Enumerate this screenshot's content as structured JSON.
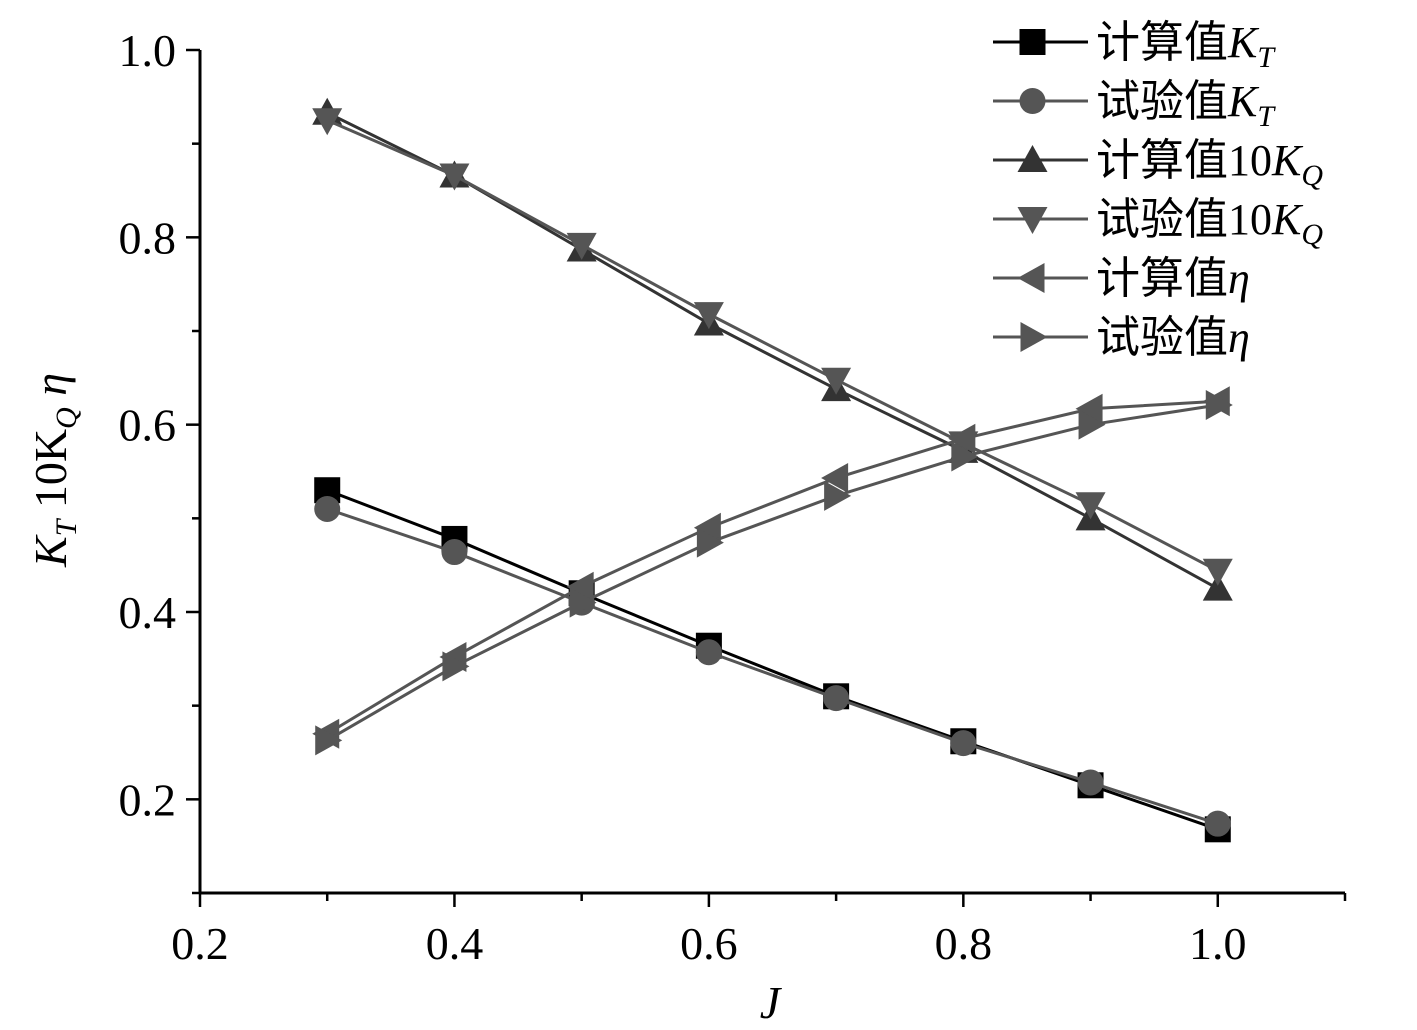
{
  "chart_data": {
    "type": "line",
    "title": "",
    "xlabel": "J",
    "ylabel": {
      "k": "K",
      "k_sub": "T",
      "mid": " 10K",
      "q_sub": "Q",
      "eta": " η"
    },
    "xlim": [
      0.2,
      1.1
    ],
    "ylim": [
      0.1,
      1.0
    ],
    "xticks": [
      0.2,
      0.4,
      0.6,
      0.8,
      1.0
    ],
    "xtick_labels": [
      "0.2",
      "0.4",
      "0.6",
      "0.8",
      "1.0"
    ],
    "yticks": [
      0.2,
      0.4,
      0.6,
      0.8,
      1.0
    ],
    "ytick_labels": [
      "0.2",
      "0.4",
      "0.6",
      "0.8",
      "1.0"
    ],
    "grid": false,
    "legend_position": "top-right",
    "x": [
      0.3,
      0.4,
      0.5,
      0.6,
      0.7,
      0.8,
      0.9,
      1.0
    ],
    "series": [
      {
        "name": "计算值",
        "name_var": "K",
        "name_sub": "T",
        "marker": "square",
        "color": "#000000",
        "values": [
          0.53,
          0.478,
          0.42,
          0.364,
          0.31,
          0.262,
          0.215,
          0.168
        ]
      },
      {
        "name": "试验值",
        "name_var": "K",
        "name_sub": "T",
        "marker": "circle",
        "color": "#555555",
        "values": [
          0.51,
          0.464,
          0.41,
          0.357,
          0.308,
          0.26,
          0.218,
          0.174
        ]
      },
      {
        "name": "计算值10",
        "name_var": "K",
        "name_sub": "Q",
        "marker": "triangle-up",
        "color": "#333333",
        "values": [
          0.933,
          0.866,
          0.787,
          0.708,
          0.638,
          0.572,
          0.5,
          0.425
        ]
      },
      {
        "name": "试验值10",
        "name_var": "K",
        "name_sub": "Q",
        "marker": "triangle-down",
        "color": "#555555",
        "values": [
          0.925,
          0.866,
          0.792,
          0.718,
          0.648,
          0.58,
          0.515,
          0.444
        ]
      },
      {
        "name": "计算值",
        "name_var": "η",
        "name_sub": "",
        "marker": "triangle-left",
        "color": "#555555",
        "values": [
          0.27,
          0.352,
          0.427,
          0.49,
          0.543,
          0.585,
          0.617,
          0.625
        ]
      },
      {
        "name": "试验值",
        "name_var": "η",
        "name_sub": "",
        "marker": "triangle-right",
        "color": "#555555",
        "values": [
          0.263,
          0.342,
          0.41,
          0.474,
          0.524,
          0.566,
          0.6,
          0.621
        ]
      }
    ]
  }
}
